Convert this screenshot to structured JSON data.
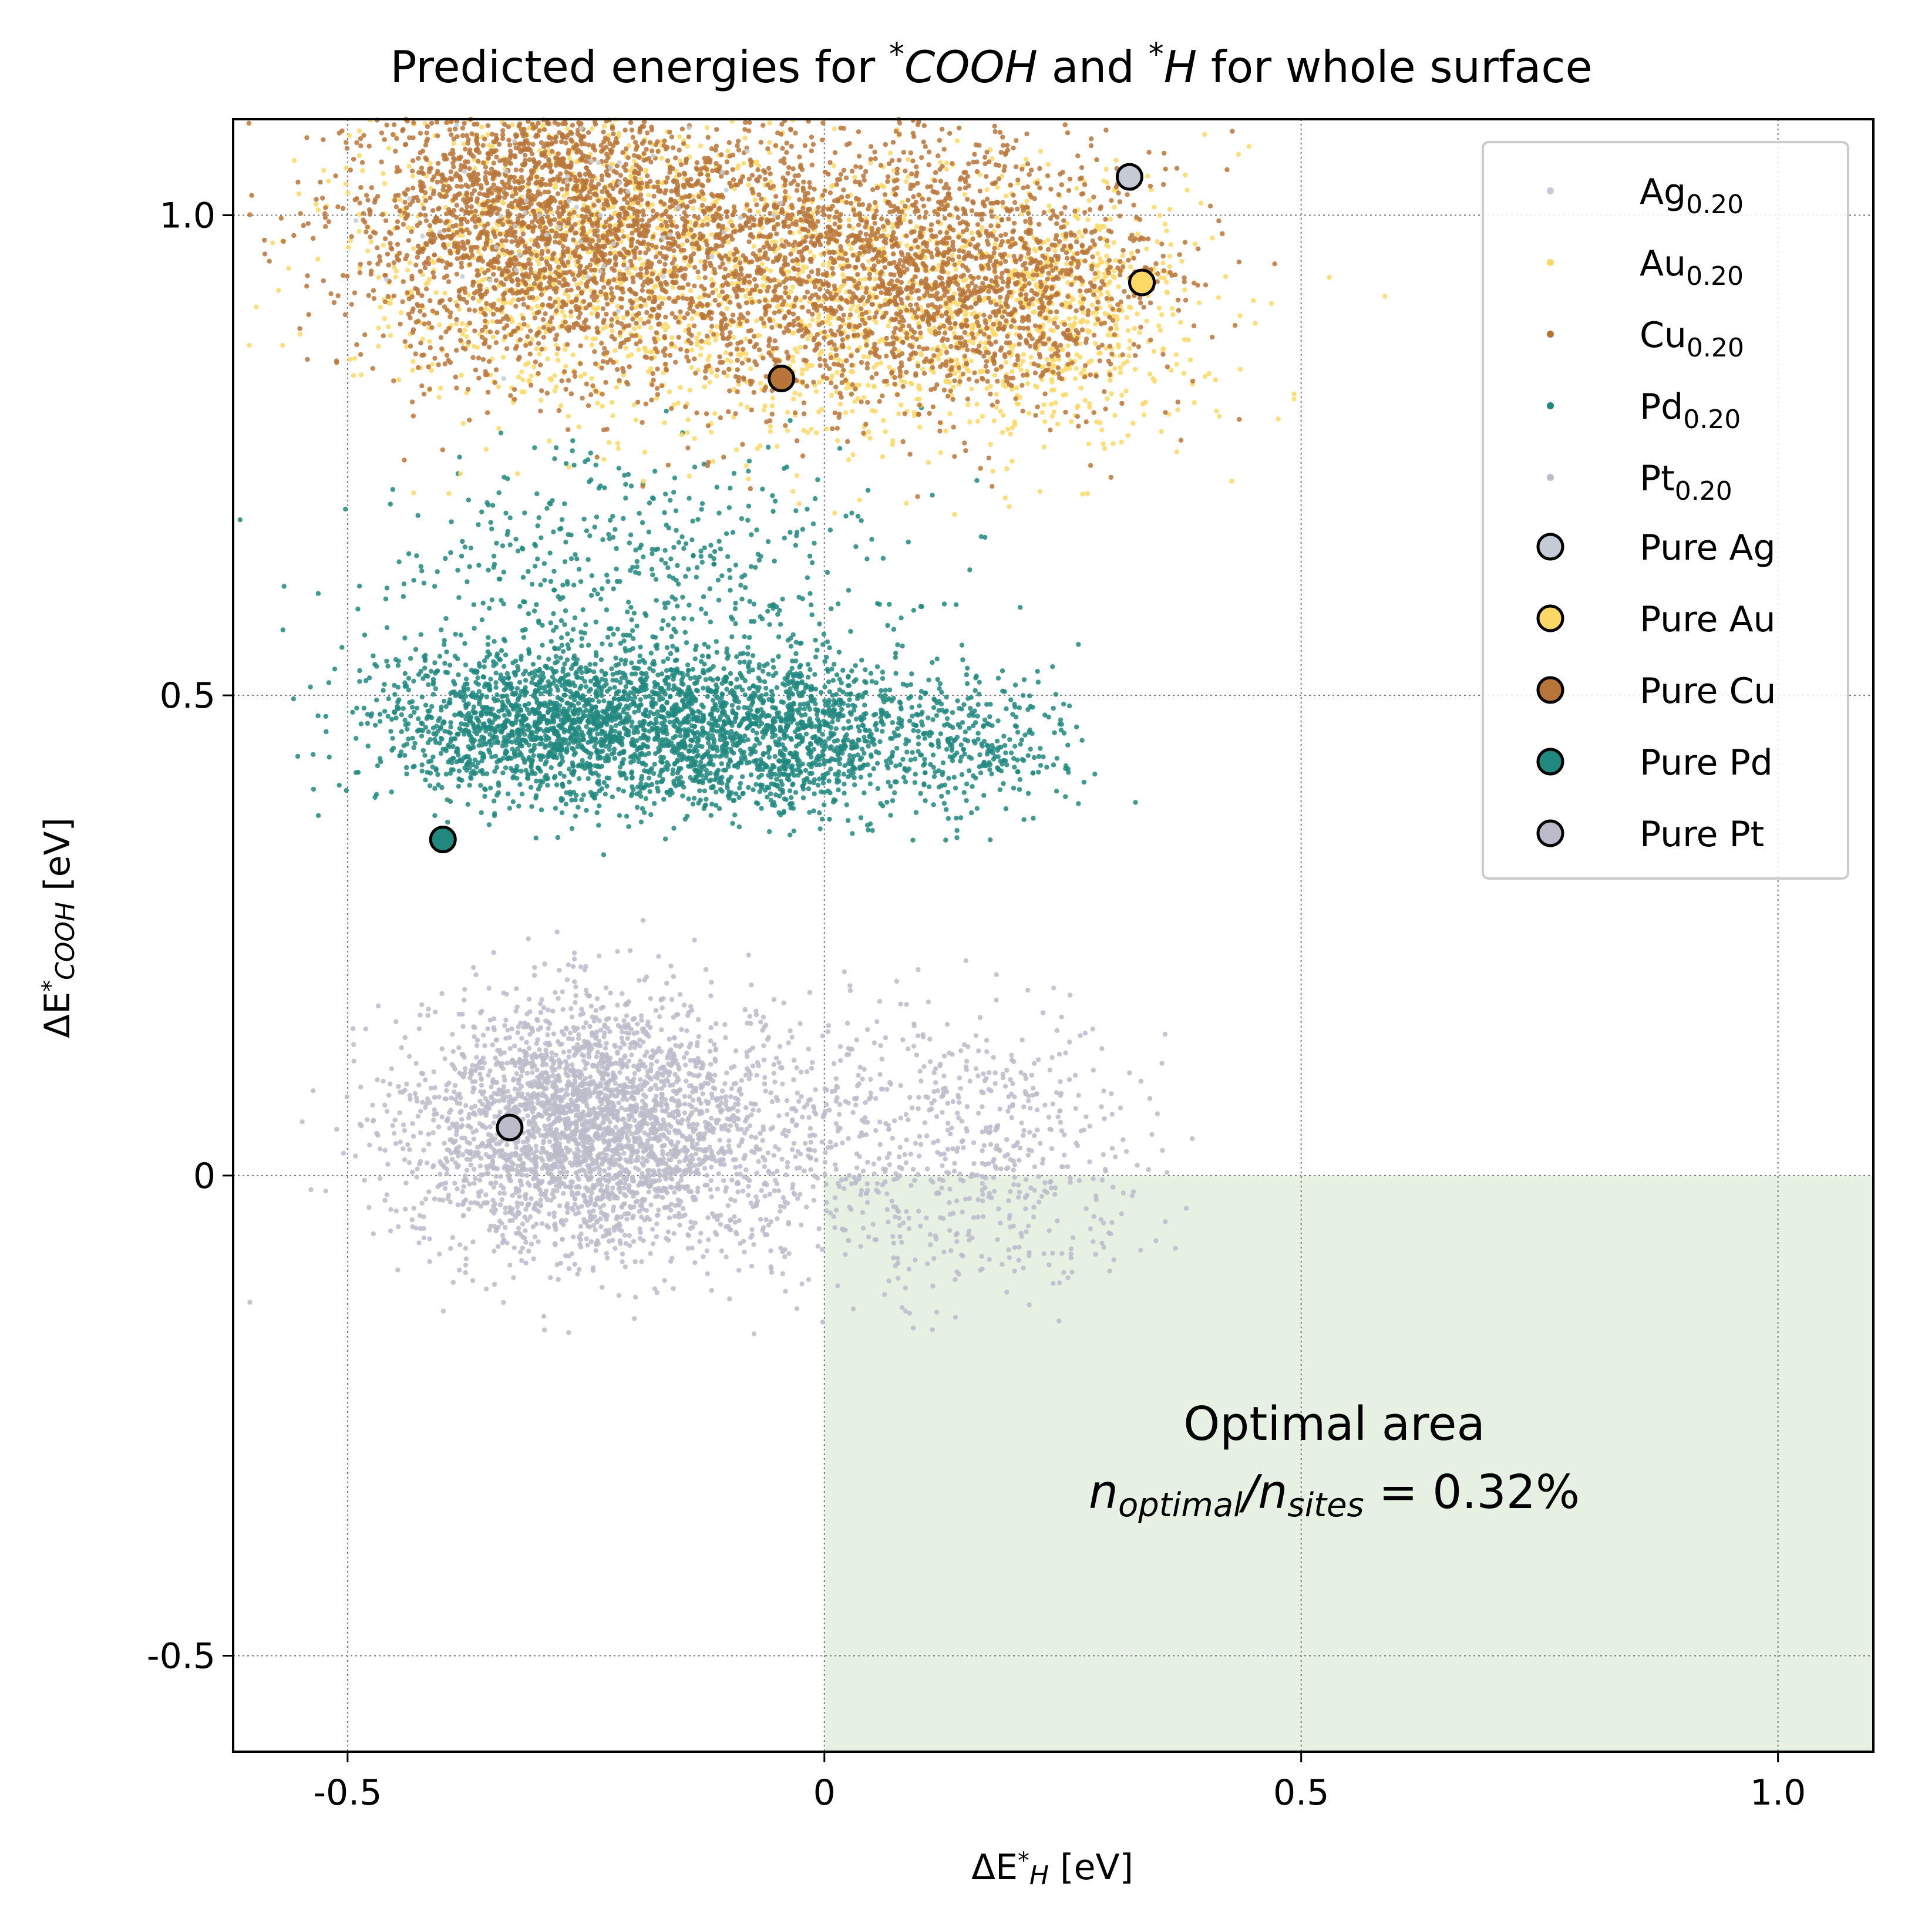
{
  "chart_data": {
    "type": "scatter",
    "title": {
      "prefix": "Predicted energies for ",
      "ads1": "COOH",
      "mid": " and ",
      "ads2": "H",
      "suffix": " for whole surface"
    },
    "xlabel": {
      "main": "ΔE",
      "sub": "H",
      "unit": " [eV]"
    },
    "ylabel": {
      "main": "ΔE",
      "sub": "COOH",
      "unit": " [eV]"
    },
    "xlim": [
      -0.62,
      1.1
    ],
    "ylim": [
      -0.6,
      1.1
    ],
    "x_ticks": [
      {
        "value": -0.5,
        "label": "-0.5"
      },
      {
        "value": 0,
        "label": "0"
      },
      {
        "value": 0.5,
        "label": "0.5"
      },
      {
        "value": 1.0,
        "label": "1.0"
      }
    ],
    "y_ticks": [
      {
        "value": -0.5,
        "label": "-0.5"
      },
      {
        "value": 0,
        "label": "0"
      },
      {
        "value": 0.5,
        "label": "0.5"
      },
      {
        "value": 1.0,
        "label": "1.0"
      }
    ],
    "grid": true,
    "legend_position": "top-right",
    "optimal_region": {
      "x": [
        0,
        1.1
      ],
      "y": [
        -0.6,
        0
      ],
      "color": "#e6f1e3",
      "label": "Optimal area",
      "ratio_num": "n",
      "ratio_num_sub": "optimal",
      "ratio_den": "n",
      "ratio_den_sub": "sites",
      "ratio_value": " = 0.32%"
    },
    "series": [
      {
        "name": "Ag",
        "sub": "0.20",
        "color": "#c5cbd4",
        "clusters": [
          {
            "cx": -0.28,
            "cy": 1.01,
            "sx": 0.1,
            "sy": 0.06,
            "n": 60
          }
        ]
      },
      {
        "name": "Au",
        "sub": "0.20",
        "color": "#fdd867",
        "clusters": [
          {
            "cx": -0.25,
            "cy": 0.96,
            "sx": 0.13,
            "sy": 0.085,
            "n": 1200
          },
          {
            "cx": 0.1,
            "cy": 0.9,
            "sx": 0.13,
            "sy": 0.075,
            "n": 1000
          },
          {
            "cx": 0.27,
            "cy": 0.9,
            "sx": 0.06,
            "sy": 0.06,
            "n": 300
          }
        ]
      },
      {
        "name": "Cu",
        "sub": "0.20",
        "color": "#b8753a",
        "clusters": [
          {
            "cx": -0.3,
            "cy": 1.0,
            "sx": 0.1,
            "sy": 0.08,
            "n": 2400
          },
          {
            "cx": -0.05,
            "cy": 0.95,
            "sx": 0.1,
            "sy": 0.075,
            "n": 1300
          },
          {
            "cx": 0.17,
            "cy": 0.93,
            "sx": 0.09,
            "sy": 0.07,
            "n": 1300
          }
        ]
      },
      {
        "name": "Pd",
        "sub": "0.20",
        "color": "#21877f",
        "clusters": [
          {
            "cx": -0.27,
            "cy": 0.47,
            "sx": 0.1,
            "sy": 0.04,
            "n": 2000
          },
          {
            "cx": -0.05,
            "cy": 0.46,
            "sx": 0.08,
            "sy": 0.04,
            "n": 1200
          },
          {
            "cx": 0.16,
            "cy": 0.45,
            "sx": 0.05,
            "sy": 0.035,
            "n": 300
          },
          {
            "cx": -0.2,
            "cy": 0.62,
            "sx": 0.15,
            "sy": 0.07,
            "n": 500
          }
        ]
      },
      {
        "name": "Pt",
        "sub": "0.20",
        "color": "#bbbbca",
        "clusters": [
          {
            "cx": -0.25,
            "cy": 0.05,
            "sx": 0.09,
            "sy": 0.065,
            "n": 3000
          },
          {
            "cx": 0.0,
            "cy": 0.03,
            "sx": 0.09,
            "sy": 0.07,
            "n": 500
          },
          {
            "cx": 0.2,
            "cy": 0.03,
            "sx": 0.07,
            "sy": 0.07,
            "n": 400
          }
        ]
      }
    ],
    "pure_points": [
      {
        "name": "Pure Ag",
        "x": 0.32,
        "y": 1.04,
        "color": "#c5cbd4"
      },
      {
        "name": "Pure Au",
        "x": 0.333,
        "y": 0.93,
        "color": "#fdd867"
      },
      {
        "name": "Pure Cu",
        "x": -0.045,
        "y": 0.83,
        "color": "#b8753a"
      },
      {
        "name": "Pure Pd",
        "x": -0.4,
        "y": 0.35,
        "color": "#21877f"
      },
      {
        "name": "Pure Pt",
        "x": -0.33,
        "y": 0.05,
        "color": "#bbbbca"
      }
    ]
  }
}
